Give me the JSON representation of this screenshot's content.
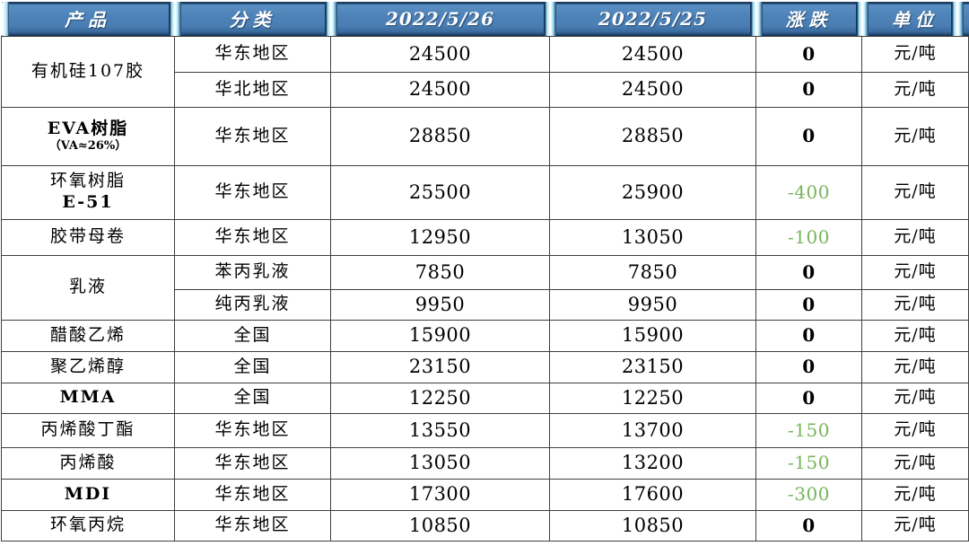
{
  "colors": {
    "header_blue": "#4d82b8",
    "header_dark_edge": "#17365a",
    "separator_highlight": "#eafdff",
    "negative_green": "#77b55a",
    "grid_border": "#3f3f3f",
    "header_text": "#ffffff",
    "body_text": "#000000"
  },
  "table": {
    "headers": [
      "产品",
      "分类",
      "2022/5/26",
      "2022/5/25",
      "涨跌",
      "单位"
    ],
    "rows": [
      {
        "product": {
          "rowspan": 2,
          "lines": [
            {
              "text": "有机硅107胶",
              "bold": false,
              "small": false
            }
          ]
        },
        "category": "华东地区",
        "price_2022_5_26": "24500",
        "price_2022_5_25": "24500",
        "change": "0",
        "unit": "元/吨"
      },
      {
        "category": "华北地区",
        "price_2022_5_26": "24500",
        "price_2022_5_25": "24500",
        "change": "0",
        "unit": "元/吨"
      },
      {
        "product": {
          "rowspan": 1,
          "lines": [
            {
              "text": "EVA树脂",
              "bold": true,
              "small": false
            },
            {
              "text": "（VA≈26%）",
              "bold": true,
              "small": true
            }
          ]
        },
        "category": "华东地区",
        "price_2022_5_26": "28850",
        "price_2022_5_25": "28850",
        "change": "0",
        "unit": "元/吨"
      },
      {
        "product": {
          "rowspan": 1,
          "lines": [
            {
              "text": "环氧树脂",
              "bold": false,
              "small": false
            },
            {
              "text": "E-51",
              "bold": true,
              "small": false
            }
          ]
        },
        "category": "华东地区",
        "price_2022_5_26": "25500",
        "price_2022_5_25": "25900",
        "change": "-400",
        "unit": "元/吨"
      },
      {
        "product": {
          "rowspan": 1,
          "lines": [
            {
              "text": "胶带母卷",
              "bold": false,
              "small": false
            }
          ]
        },
        "category": "华东地区",
        "price_2022_5_26": "12950",
        "price_2022_5_25": "13050",
        "change": "-100",
        "unit": "元/吨"
      },
      {
        "product": {
          "rowspan": 2,
          "lines": [
            {
              "text": "乳液",
              "bold": false,
              "small": false
            }
          ]
        },
        "category": "苯丙乳液",
        "price_2022_5_26": "7850",
        "price_2022_5_25": "7850",
        "change": "0",
        "unit": "元/吨"
      },
      {
        "category": "纯丙乳液",
        "price_2022_5_26": "9950",
        "price_2022_5_25": "9950",
        "change": "0",
        "unit": "元/吨"
      },
      {
        "product": {
          "rowspan": 1,
          "lines": [
            {
              "text": "醋酸乙烯",
              "bold": false,
              "small": false
            }
          ]
        },
        "category": "全国",
        "price_2022_5_26": "15900",
        "price_2022_5_25": "15900",
        "change": "0",
        "unit": "元/吨"
      },
      {
        "product": {
          "rowspan": 1,
          "lines": [
            {
              "text": "聚乙烯醇",
              "bold": false,
              "small": false
            }
          ]
        },
        "category": "全国",
        "price_2022_5_26": "23150",
        "price_2022_5_25": "23150",
        "change": "0",
        "unit": "元/吨"
      },
      {
        "product": {
          "rowspan": 1,
          "lines": [
            {
              "text": "MMA",
              "bold": true,
              "small": false
            }
          ]
        },
        "category": "全国",
        "price_2022_5_26": "12250",
        "price_2022_5_25": "12250",
        "change": "0",
        "unit": "元/吨"
      },
      {
        "product": {
          "rowspan": 1,
          "lines": [
            {
              "text": "丙烯酸丁酯",
              "bold": false,
              "small": false
            }
          ]
        },
        "category": "华东地区",
        "price_2022_5_26": "13550",
        "price_2022_5_25": "13700",
        "change": "-150",
        "unit": "元/吨"
      },
      {
        "product": {
          "rowspan": 1,
          "lines": [
            {
              "text": "丙烯酸",
              "bold": false,
              "small": false
            }
          ]
        },
        "category": "华东地区",
        "price_2022_5_26": "13050",
        "price_2022_5_25": "13200",
        "change": "-150",
        "unit": "元/吨"
      },
      {
        "product": {
          "rowspan": 1,
          "lines": [
            {
              "text": "MDI",
              "bold": true,
              "small": false
            }
          ]
        },
        "category": "华东地区",
        "price_2022_5_26": "17300",
        "price_2022_5_25": "17600",
        "change": "-300",
        "unit": "元/吨"
      },
      {
        "product": {
          "rowspan": 1,
          "lines": [
            {
              "text": "环氧丙烷",
              "bold": false,
              "small": false
            }
          ]
        },
        "category": "华东地区",
        "price_2022_5_26": "10850",
        "price_2022_5_25": "10850",
        "change": "0",
        "unit": "元/吨"
      }
    ]
  }
}
